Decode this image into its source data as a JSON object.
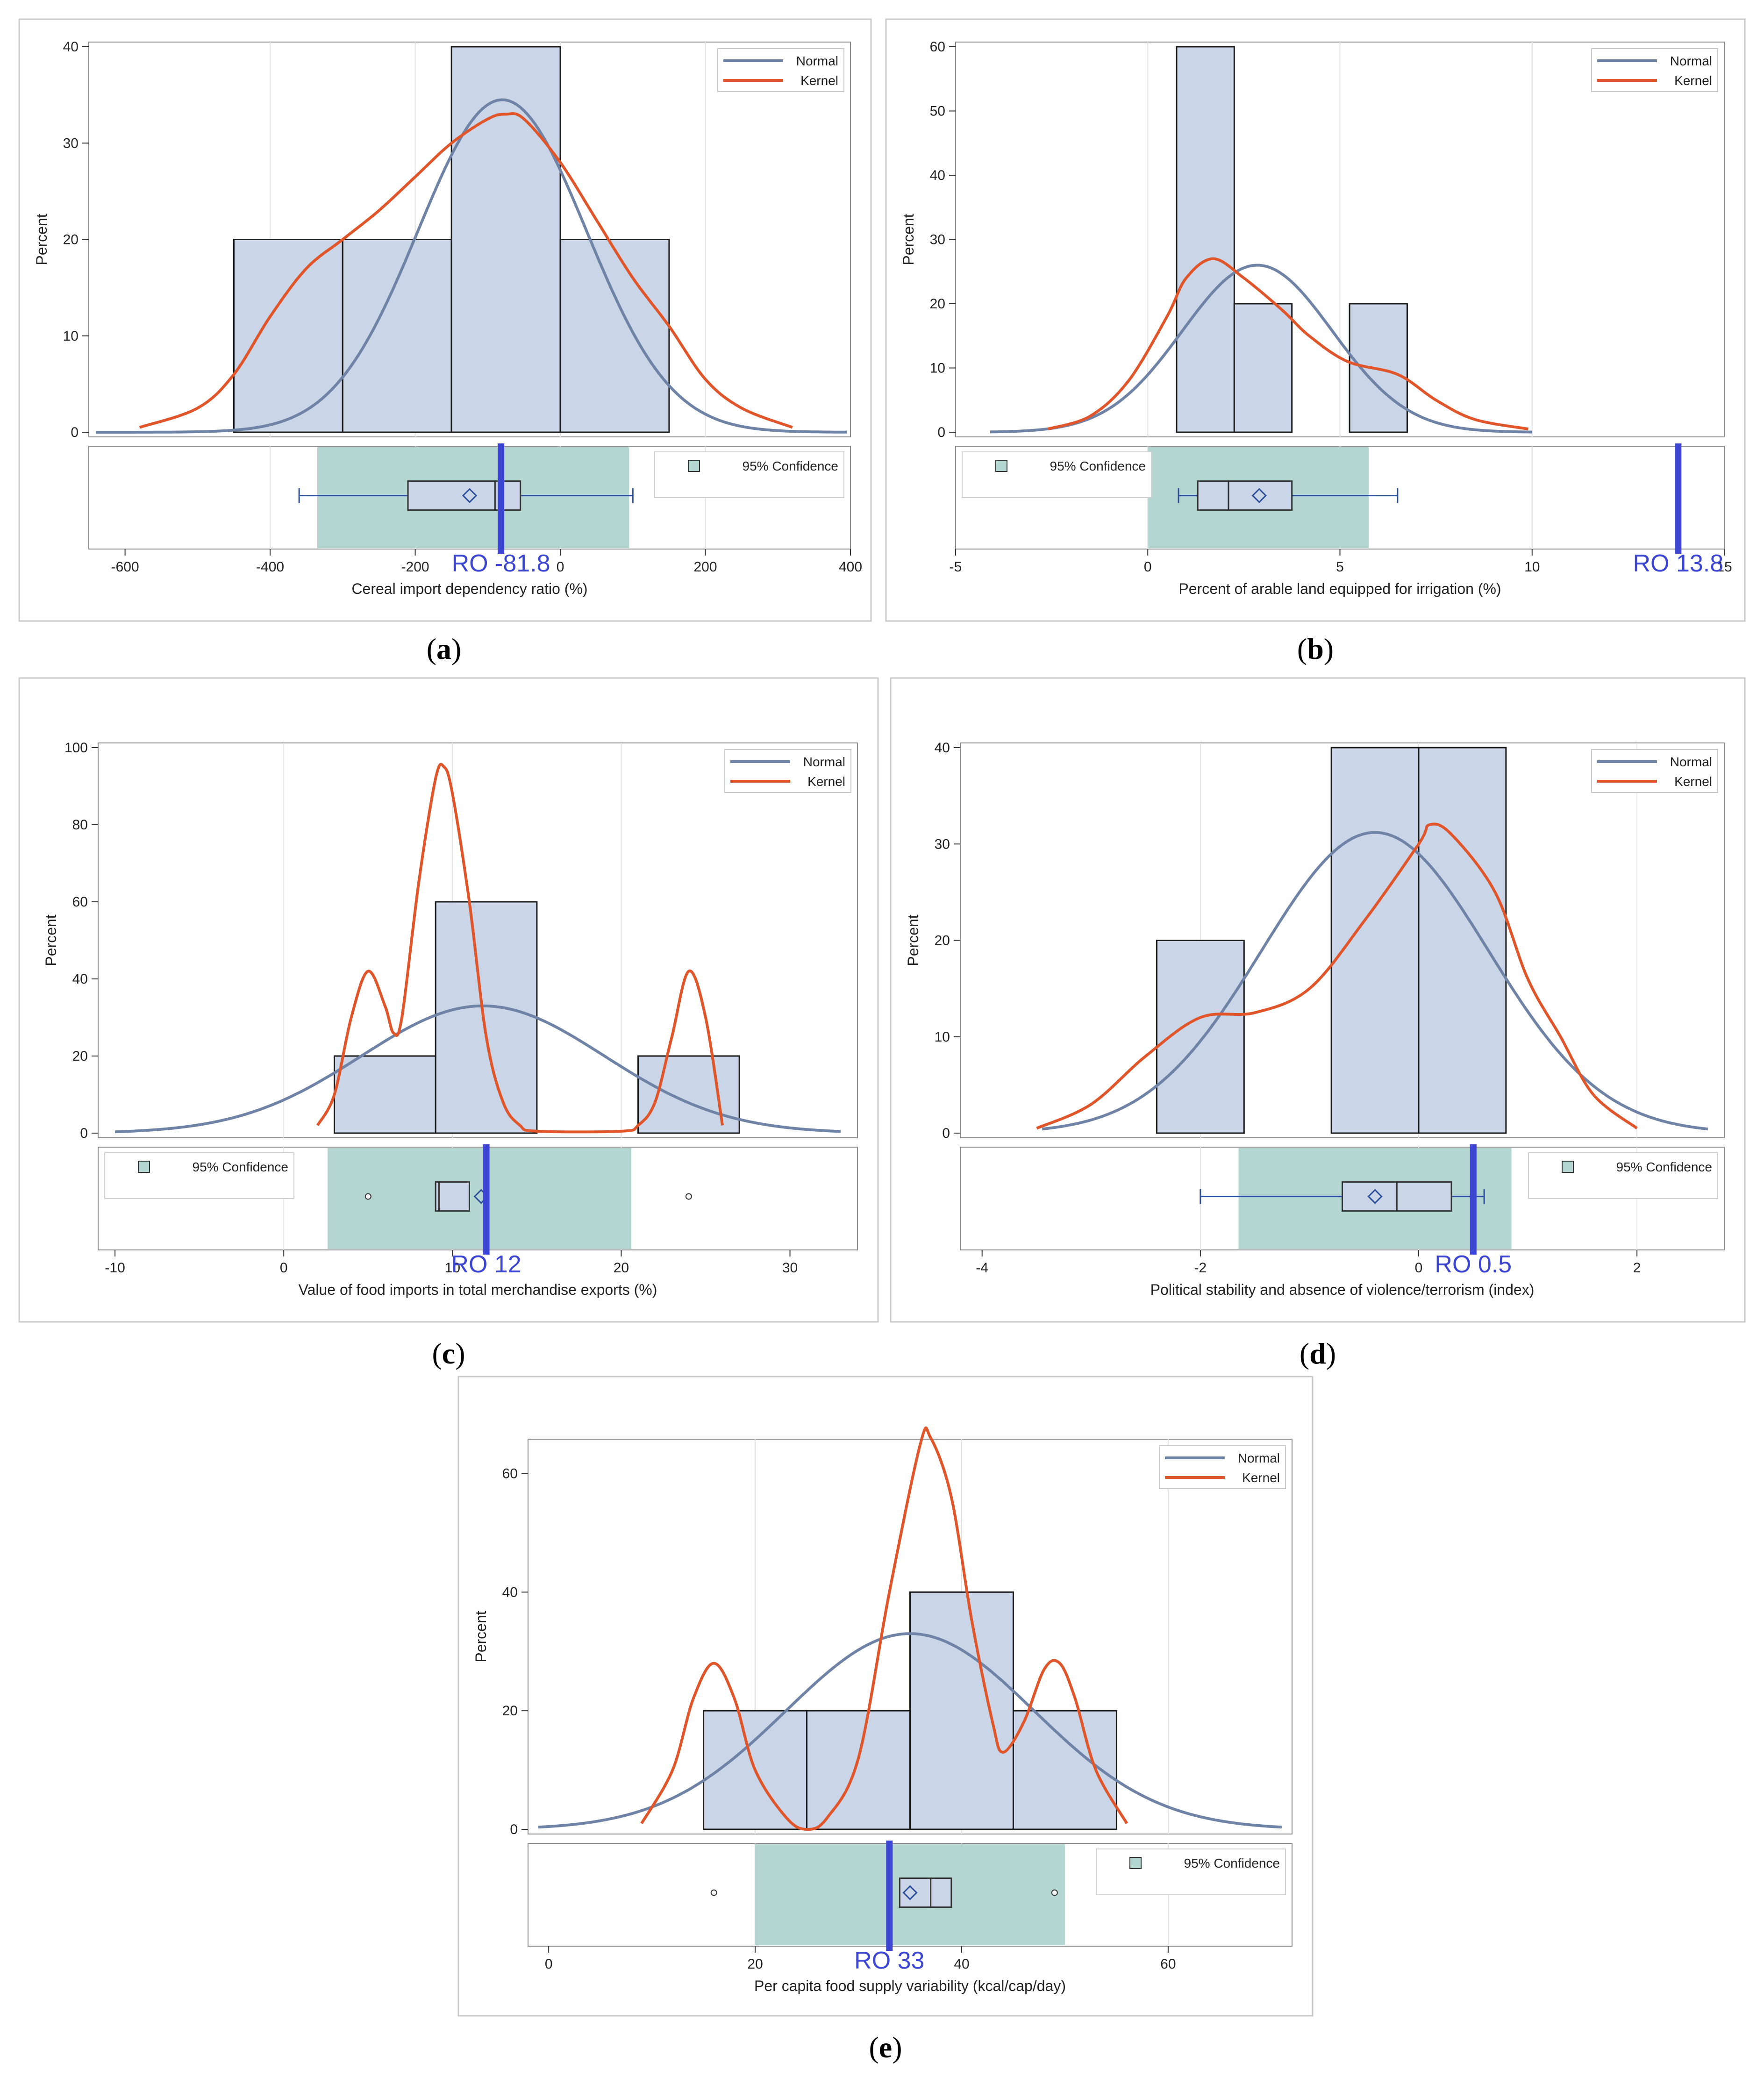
{
  "colors": {
    "normal": "#6f83a6",
    "kernel": "#e0552a",
    "bar_fill": "#cad6e7",
    "bar_stroke": "#1a1a1a",
    "ci_fill": "#b4d6d0",
    "ro_line": "#3c46d2",
    "ro_text": "#3c46d2",
    "box_stroke": "#2c4d9a",
    "grid": "#e2e2e2",
    "frame": "#c8c8c8"
  },
  "legend": {
    "normal": "Normal",
    "kernel": "Kernel",
    "confidence": "95% Confidence"
  },
  "chart_data": [
    {
      "id": "a",
      "caption": "a",
      "type": "histogram",
      "ylabel": "Percent",
      "xlabel": "Cereal import dependency ratio (%)",
      "xlim": [
        -650,
        400
      ],
      "ylim": [
        0,
        40
      ],
      "xticks": [
        -600,
        -400,
        -200,
        0,
        200,
        400
      ],
      "yticks": [
        0,
        10,
        20,
        30,
        40
      ],
      "grid_x": [
        -400,
        -200,
        0,
        200
      ],
      "bins": [
        {
          "x0": -450,
          "x1": -300,
          "value": 20
        },
        {
          "x0": -300,
          "x1": -150,
          "value": 20
        },
        {
          "x0": -150,
          "x1": 0,
          "value": 40
        },
        {
          "x0": 0,
          "x1": 150,
          "value": 20
        }
      ],
      "normal": {
        "mean": -80,
        "sd": 116,
        "peak": 34.5,
        "range": [
          -640,
          395
        ]
      },
      "kernel": {
        "range": [
          -580,
          320
        ],
        "points": [
          [
            -580,
            0.5
          ],
          [
            -500,
            2.5
          ],
          [
            -450,
            6
          ],
          [
            -400,
            12
          ],
          [
            -350,
            17
          ],
          [
            -300,
            20
          ],
          [
            -250,
            23
          ],
          [
            -200,
            26.5
          ],
          [
            -150,
            30
          ],
          [
            -100,
            32.5
          ],
          [
            -75,
            33
          ],
          [
            -50,
            32.5
          ],
          [
            0,
            28
          ],
          [
            50,
            22
          ],
          [
            100,
            16
          ],
          [
            150,
            11
          ],
          [
            200,
            5.5
          ],
          [
            250,
            2.5
          ],
          [
            320,
            0.5
          ]
        ]
      },
      "legend_pos": "top-right",
      "confidence_legend_pos": "right",
      "ci": [
        -335,
        95
      ],
      "box": {
        "whisker_min": -360,
        "q1": -210,
        "median": -90,
        "q3": -55,
        "whisker_max": 100,
        "mean": -125,
        "outliers": []
      },
      "ro": {
        "value": -81.8,
        "label": "RO  -81.8"
      }
    },
    {
      "id": "b",
      "caption": "b",
      "type": "histogram",
      "ylabel": "Percent",
      "xlabel": "Percent of arable land equipped for irrigation (%)",
      "xlim": [
        -5,
        15
      ],
      "ylim": [
        0,
        60
      ],
      "xticks": [
        -5,
        0,
        5,
        10,
        15
      ],
      "yticks": [
        0,
        10,
        20,
        30,
        40,
        50,
        60
      ],
      "grid_x": [
        0,
        5,
        10
      ],
      "bins": [
        {
          "x0": 0.75,
          "x1": 2.25,
          "value": 60
        },
        {
          "x0": 2.25,
          "x1": 3.75,
          "value": 20
        },
        {
          "x0": 3.75,
          "x1": 5.25,
          "value": 0
        },
        {
          "x0": 5.25,
          "x1": 6.75,
          "value": 20
        }
      ],
      "normal": {
        "mean": 2.85,
        "sd": 1.95,
        "peak": 26,
        "range": [
          -4.1,
          10
        ]
      },
      "kernel": {
        "range": [
          -2.6,
          9.9
        ],
        "points": [
          [
            -2.6,
            0.5
          ],
          [
            -1.5,
            2.5
          ],
          [
            -0.5,
            8
          ],
          [
            0.5,
            18
          ],
          [
            1,
            24
          ],
          [
            1.7,
            27
          ],
          [
            2.5,
            24
          ],
          [
            3.5,
            19
          ],
          [
            4.2,
            15
          ],
          [
            5.2,
            11
          ],
          [
            6.5,
            9
          ],
          [
            7.5,
            5
          ],
          [
            8.5,
            2
          ],
          [
            9.9,
            0.5
          ]
        ]
      },
      "legend_pos": "top-right",
      "confidence_legend_pos": "left",
      "ci": [
        0,
        5.75
      ],
      "box": {
        "whisker_min": 0.8,
        "q1": 1.3,
        "median": 2.1,
        "q3": 3.75,
        "whisker_max": 6.5,
        "mean": 2.9,
        "outliers": []
      },
      "ro": {
        "value": 13.8,
        "label": "RO  13.8"
      }
    },
    {
      "id": "c",
      "caption": "c",
      "type": "histogram",
      "ylabel": "Percent",
      "xlabel": "Value of food imports in total merchandise exports (%)",
      "xlim": [
        -11,
        34
      ],
      "ylim": [
        0,
        100
      ],
      "xticks": [
        -10,
        0,
        10,
        20,
        30
      ],
      "yticks": [
        0,
        20,
        40,
        60,
        80,
        100
      ],
      "grid_x": [
        0,
        10,
        20
      ],
      "bins": [
        {
          "x0": 3,
          "x1": 9,
          "value": 20
        },
        {
          "x0": 9,
          "x1": 15,
          "value": 60
        },
        {
          "x0": 15,
          "x1": 21,
          "value": 0
        },
        {
          "x0": 21,
          "x1": 27,
          "value": 20
        }
      ],
      "normal": {
        "mean": 11.8,
        "sd": 7.2,
        "peak": 33,
        "range": [
          -10,
          33
        ]
      },
      "kernel": {
        "range": [
          2,
          26
        ],
        "points": [
          [
            2,
            2
          ],
          [
            3,
            10
          ],
          [
            4,
            30
          ],
          [
            5,
            42
          ],
          [
            6,
            33
          ],
          [
            6.5,
            26
          ],
          [
            7,
            30
          ],
          [
            8,
            65
          ],
          [
            9,
            92
          ],
          [
            9.5,
            95
          ],
          [
            10,
            88
          ],
          [
            11,
            60
          ],
          [
            12,
            25
          ],
          [
            13,
            8
          ],
          [
            14,
            2
          ],
          [
            15,
            0.5
          ],
          [
            20,
            0.5
          ],
          [
            21,
            2
          ],
          [
            22,
            8
          ],
          [
            23,
            25
          ],
          [
            24,
            42
          ],
          [
            25,
            30
          ],
          [
            26,
            2
          ]
        ]
      },
      "legend_pos": "top-right",
      "confidence_legend_pos": "left",
      "ci": [
        2.6,
        20.6
      ],
      "box": {
        "whisker_min": null,
        "q1": 9,
        "median": 9.2,
        "q3": 11,
        "whisker_max": null,
        "mean": 11.7,
        "outliers": [
          5,
          24
        ]
      },
      "ro": {
        "value": 12,
        "label": "RO  12"
      }
    },
    {
      "id": "d",
      "caption": "d",
      "type": "histogram",
      "ylabel": "Percent",
      "xlabel": "Political stability and absence of violence/terrorism (index)",
      "xlim": [
        -4.2,
        2.8
      ],
      "ylim": [
        0,
        40
      ],
      "xticks": [
        -4,
        -2,
        0,
        2
      ],
      "yticks": [
        0,
        10,
        20,
        30,
        40
      ],
      "grid_x": [
        -2,
        0,
        2
      ],
      "bins": [
        {
          "x0": -2.4,
          "x1": -1.6,
          "value": 20
        },
        {
          "x0": -1.6,
          "x1": -0.8,
          "value": 0
        },
        {
          "x0": -0.8,
          "x1": 0,
          "value": 40
        },
        {
          "x0": 0,
          "x1": 0.8,
          "value": 40
        }
      ],
      "normal": {
        "mean": -0.4,
        "sd": 1.04,
        "peak": 31.2,
        "range": [
          -3.45,
          2.65
        ]
      },
      "kernel": {
        "range": [
          -3.5,
          2
        ],
        "points": [
          [
            -3.5,
            0.5
          ],
          [
            -3,
            3
          ],
          [
            -2.5,
            8
          ],
          [
            -2,
            12
          ],
          [
            -1.5,
            12.5
          ],
          [
            -1,
            15
          ],
          [
            -0.5,
            22
          ],
          [
            0,
            30
          ],
          [
            0.1,
            32
          ],
          [
            0.3,
            31
          ],
          [
            0.7,
            25
          ],
          [
            1,
            16
          ],
          [
            1.3,
            10
          ],
          [
            1.6,
            4
          ],
          [
            2,
            0.5
          ]
        ]
      },
      "legend_pos": "top-right",
      "confidence_legend_pos": "right",
      "ci": [
        -1.65,
        0.85
      ],
      "box": {
        "whisker_min": -2,
        "q1": -0.7,
        "median": -0.2,
        "q3": 0.3,
        "whisker_max": 0.6,
        "mean": -0.4,
        "outliers": []
      },
      "ro": {
        "value": 0.5,
        "label": "RO  0.5"
      }
    },
    {
      "id": "e",
      "caption": "e",
      "type": "histogram",
      "ylabel": "Percent",
      "xlabel": "Per capita food supply variability (kcal/cap/day)",
      "xlim": [
        -2,
        72
      ],
      "ylim": [
        0,
        65
      ],
      "xticks": [
        0,
        20,
        40,
        60
      ],
      "yticks": [
        0,
        20,
        40,
        60
      ],
      "grid_x": [
        20,
        40,
        60
      ],
      "bins": [
        {
          "x0": 15,
          "x1": 25,
          "value": 20
        },
        {
          "x0": 25,
          "x1": 35,
          "value": 20
        },
        {
          "x0": 35,
          "x1": 45,
          "value": 40
        },
        {
          "x0": 45,
          "x1": 55,
          "value": 20
        }
      ],
      "normal": {
        "mean": 35,
        "sd": 12,
        "peak": 33,
        "range": [
          -1,
          71
        ]
      },
      "kernel": {
        "range": [
          9,
          56
        ],
        "points": [
          [
            9,
            1
          ],
          [
            12,
            10
          ],
          [
            14,
            22
          ],
          [
            16,
            28
          ],
          [
            18,
            22
          ],
          [
            20,
            10
          ],
          [
            23,
            2
          ],
          [
            25,
            0
          ],
          [
            27,
            2
          ],
          [
            30,
            12
          ],
          [
            33,
            40
          ],
          [
            36,
            65
          ],
          [
            37,
            66
          ],
          [
            39,
            56
          ],
          [
            41,
            35
          ],
          [
            43,
            18
          ],
          [
            44,
            13
          ],
          [
            46,
            18
          ],
          [
            48,
            27
          ],
          [
            49.5,
            28
          ],
          [
            51,
            22
          ],
          [
            53,
            10
          ],
          [
            56,
            1
          ]
        ]
      },
      "legend_pos": "top-right",
      "confidence_legend_pos": "right",
      "ci": [
        20,
        50
      ],
      "box": {
        "whisker_min": null,
        "q1": 34,
        "median": 37,
        "q3": 39,
        "whisker_max": null,
        "mean": 35,
        "outliers": [
          16,
          49
        ]
      },
      "ro": {
        "value": 33,
        "label": "RO  33"
      }
    }
  ]
}
